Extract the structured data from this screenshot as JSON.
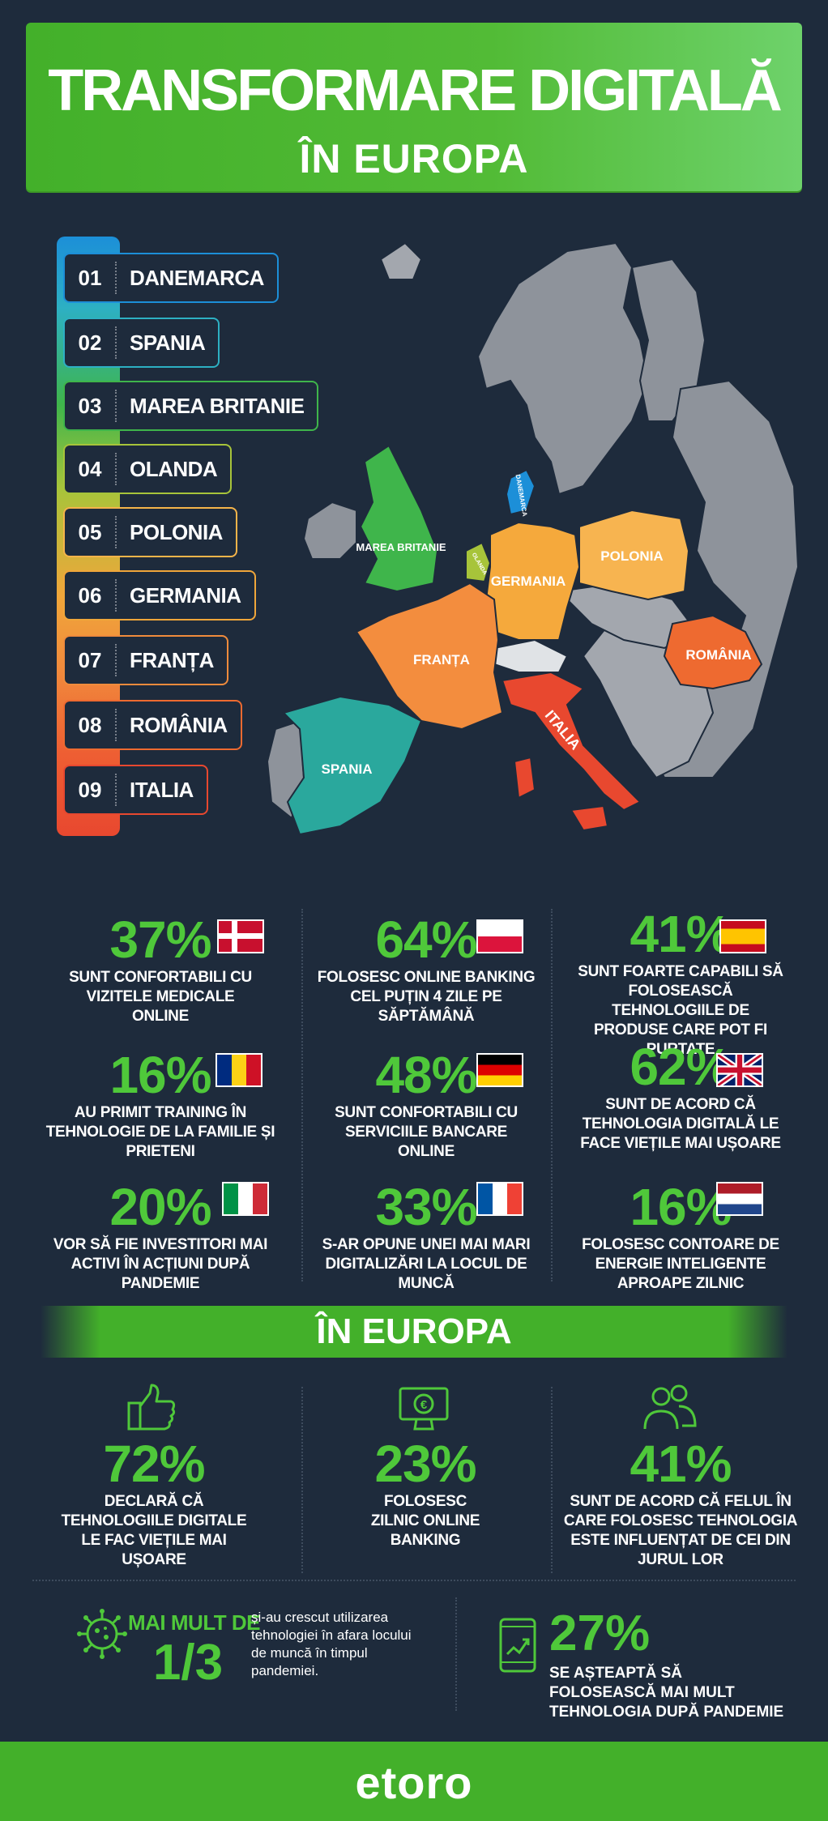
{
  "title": {
    "line1": "TRANSFORMARE DIGITALĂ",
    "line2": "ÎN EUROPA"
  },
  "colors": {
    "accent": "#43b02a",
    "background": "#1e2b3c",
    "stat_green": "#4fc83a"
  },
  "ranking": [
    {
      "num": "01",
      "name": "DANEMARCA",
      "color": "#1c8fd8"
    },
    {
      "num": "02",
      "name": "SPANIA",
      "color": "#2db0c3"
    },
    {
      "num": "03",
      "name": "MAREA BRITANIE",
      "color": "#3fb54b"
    },
    {
      "num": "04",
      "name": "OLANDA",
      "color": "#a7c43a"
    },
    {
      "num": "05",
      "name": "POLONIA",
      "color": "#f5b44a"
    },
    {
      "num": "06",
      "name": "GERMANIA",
      "color": "#f0a63a"
    },
    {
      "num": "07",
      "name": "FRANȚA",
      "color": "#f08b3c"
    },
    {
      "num": "08",
      "name": "ROMÂNIA",
      "color": "#ee6a30"
    },
    {
      "num": "09",
      "name": "ITALIA",
      "color": "#e8482f"
    }
  ],
  "map_labels": {
    "danemarca": "DANEMARCA",
    "olanda": "OLANDA",
    "marea_britanie": "MAREA BRITANIE",
    "germania": "GERMANIA",
    "polonia": "POLONIA",
    "franta": "FRANȚA",
    "romania": "ROMÂNIA",
    "italia": "ITALIA",
    "spania": "SPANIA"
  },
  "country_stats": [
    {
      "value": "37%",
      "flag": "denmark-flag",
      "text": "SUNT CONFORTABILI CU VIZITELE MEDICALE ONLINE"
    },
    {
      "value": "64%",
      "flag": "poland-flag",
      "text": "FOLOSESC ONLINE BANKING CEL PUȚIN 4 ZILE PE SĂPTĂMÂNĂ"
    },
    {
      "value": "41%",
      "flag": "spain-flag",
      "text": "SUNT FOARTE CAPABILI SĂ FOLOSEASCĂ TEHNOLOGIILE DE PRODUSE CARE POT FI PURTATE"
    },
    {
      "value": "16%",
      "flag": "romania-flag",
      "text": "AU PRIMIT TRAINING ÎN TEHNOLOGIE DE LA FAMILIE ȘI PRIETENI"
    },
    {
      "value": "48%",
      "flag": "germany-flag",
      "text": "SUNT CONFORTABILI CU SERVICIILE BANCARE ONLINE"
    },
    {
      "value": "62%",
      "flag": "uk-flag",
      "text": "SUNT DE ACORD CĂ TEHNOLOGIA DIGITALĂ LE FACE VIEȚILE MAI UȘOARE"
    },
    {
      "value": "20%",
      "flag": "italy-flag",
      "text": "VOR SĂ FIE INVESTITORI MAI ACTIVI ÎN ACȚIUNI DUPĂ PANDEMIE"
    },
    {
      "value": "33%",
      "flag": "france-flag",
      "text": "S-AR OPUNE UNEI MAI MARI DIGITALIZĂRI LA LOCUL DE MUNCĂ"
    },
    {
      "value": "16%",
      "flag": "netherlands-flag",
      "text": "FOLOSESC CONTOARE DE ENERGIE INTELIGENTE APROAPE ZILNIC"
    }
  ],
  "europe": {
    "heading": "ÎN EUROPA",
    "stats": [
      {
        "icon": "thumbs-up-icon",
        "value": "72%",
        "text": "DECLARĂ CĂ TEHNOLOGIILE DIGITALE LE FAC VIEȚILE MAI UȘOARE"
      },
      {
        "icon": "online-banking-icon",
        "value": "23%",
        "text": "FOLOSESC ZILNIC ONLINE BANKING"
      },
      {
        "icon": "people-icon",
        "value": "41%",
        "text": "SUNT DE ACORD CĂ FELUL ÎN CARE FOLOSESC TEHNOLOGIA ESTE INFLUENȚAT DE CEI DIN JURUL LOR"
      }
    ],
    "bottom_left": {
      "icon": "virus-icon",
      "prefix": "MAI MULT DE",
      "value": "1/3",
      "text": "și-au crescut utilizarea tehnologiei în afara locului de muncă în timpul pandemiei."
    },
    "bottom_right": {
      "icon": "phone-growth-icon",
      "value": "27%",
      "text": "SE AȘTEAPTĂ SĂ FOLOSEASCĂ MAI MULT TEHNOLOGIA DUPĂ PANDEMIE"
    }
  },
  "footer": {
    "logo": "etoro"
  }
}
